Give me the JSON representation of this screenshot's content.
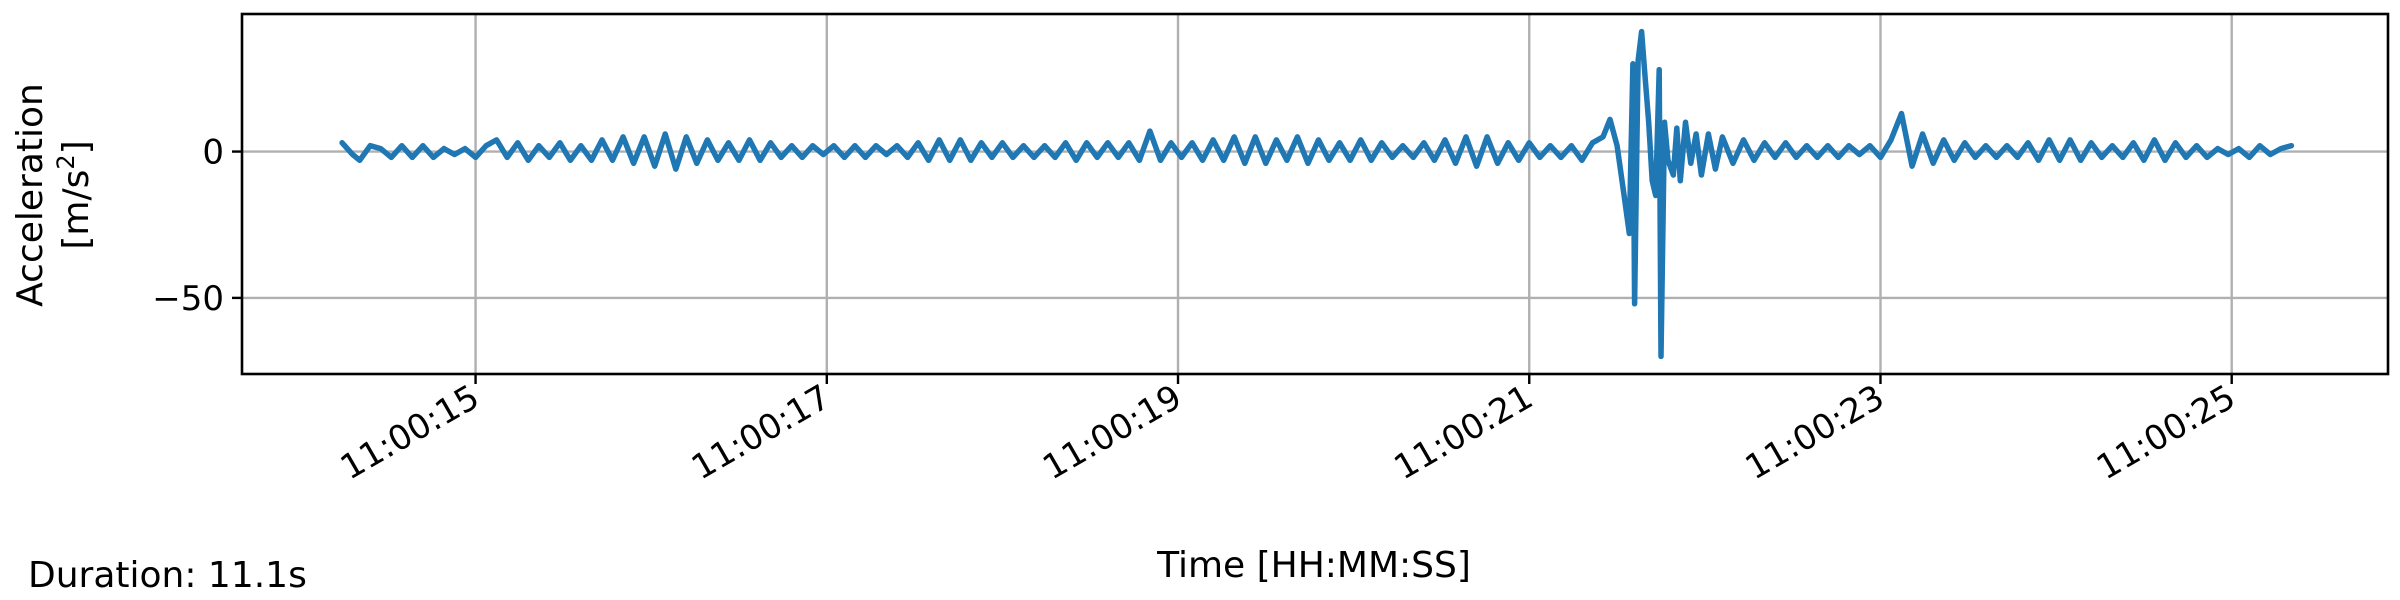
{
  "chart_data": {
    "type": "line",
    "xlabel": "Time [HH:MM:SS]",
    "ylabel_line1": "Acceleration",
    "ylabel_line2_base": "[m/s",
    "ylabel_line2_sup": "2",
    "ylabel_line2_end": "]",
    "xlim_seconds_of_minute": [
      13.67,
      25.89
    ],
    "ylim": [
      -76,
      47
    ],
    "grid": true,
    "legend": "none",
    "x_ticks": [
      {
        "t": 15,
        "label": "11:00:15"
      },
      {
        "t": 17,
        "label": "11:00:17"
      },
      {
        "t": 19,
        "label": "11:00:19"
      },
      {
        "t": 21,
        "label": "11:00:21"
      },
      {
        "t": 23,
        "label": "11:00:23"
      },
      {
        "t": 25,
        "label": "11:00:25"
      }
    ],
    "y_ticks": [
      {
        "v": 0,
        "label": "0"
      },
      {
        "v": -50,
        "label": "−50"
      }
    ],
    "series": [
      {
        "color": "#1f77b4",
        "start_second": 14.24,
        "end_second": 25.34,
        "points": [
          [
            14.24,
            3
          ],
          [
            14.3,
            -1
          ],
          [
            14.34,
            -3
          ],
          [
            14.4,
            2
          ],
          [
            14.46,
            1
          ],
          [
            14.52,
            -2
          ],
          [
            14.58,
            2
          ],
          [
            14.64,
            -2
          ],
          [
            14.7,
            2
          ],
          [
            14.76,
            -2
          ],
          [
            14.82,
            1
          ],
          [
            14.88,
            -1
          ],
          [
            14.94,
            1
          ],
          [
            15.0,
            -2
          ],
          [
            15.06,
            2
          ],
          [
            15.12,
            4
          ],
          [
            15.18,
            -2
          ],
          [
            15.24,
            3
          ],
          [
            15.3,
            -3
          ],
          [
            15.36,
            2
          ],
          [
            15.42,
            -2
          ],
          [
            15.48,
            3
          ],
          [
            15.54,
            -3
          ],
          [
            15.6,
            2
          ],
          [
            15.66,
            -3
          ],
          [
            15.72,
            4
          ],
          [
            15.78,
            -3
          ],
          [
            15.84,
            5
          ],
          [
            15.9,
            -4
          ],
          [
            15.96,
            5
          ],
          [
            16.02,
            -5
          ],
          [
            16.08,
            6
          ],
          [
            16.14,
            -6
          ],
          [
            16.2,
            5
          ],
          [
            16.26,
            -4
          ],
          [
            16.32,
            4
          ],
          [
            16.38,
            -3
          ],
          [
            16.44,
            3
          ],
          [
            16.5,
            -3
          ],
          [
            16.56,
            4
          ],
          [
            16.62,
            -3
          ],
          [
            16.68,
            3
          ],
          [
            16.74,
            -2
          ],
          [
            16.8,
            2
          ],
          [
            16.86,
            -2
          ],
          [
            16.92,
            2
          ],
          [
            16.98,
            -1
          ],
          [
            17.04,
            2
          ],
          [
            17.1,
            -2
          ],
          [
            17.16,
            2
          ],
          [
            17.22,
            -2
          ],
          [
            17.28,
            2
          ],
          [
            17.34,
            -1
          ],
          [
            17.4,
            2
          ],
          [
            17.46,
            -2
          ],
          [
            17.52,
            3
          ],
          [
            17.58,
            -3
          ],
          [
            17.64,
            4
          ],
          [
            17.7,
            -3
          ],
          [
            17.76,
            4
          ],
          [
            17.82,
            -3
          ],
          [
            17.88,
            3
          ],
          [
            17.94,
            -2
          ],
          [
            18.0,
            3
          ],
          [
            18.06,
            -2
          ],
          [
            18.12,
            2
          ],
          [
            18.18,
            -2
          ],
          [
            18.24,
            2
          ],
          [
            18.3,
            -2
          ],
          [
            18.36,
            3
          ],
          [
            18.42,
            -3
          ],
          [
            18.48,
            3
          ],
          [
            18.54,
            -2
          ],
          [
            18.6,
            3
          ],
          [
            18.66,
            -2
          ],
          [
            18.72,
            3
          ],
          [
            18.78,
            -3
          ],
          [
            18.84,
            7
          ],
          [
            18.9,
            -3
          ],
          [
            18.96,
            3
          ],
          [
            19.02,
            -2
          ],
          [
            19.08,
            3
          ],
          [
            19.14,
            -3
          ],
          [
            19.2,
            4
          ],
          [
            19.26,
            -3
          ],
          [
            19.32,
            5
          ],
          [
            19.38,
            -4
          ],
          [
            19.44,
            5
          ],
          [
            19.5,
            -4
          ],
          [
            19.56,
            4
          ],
          [
            19.62,
            -3
          ],
          [
            19.68,
            5
          ],
          [
            19.74,
            -4
          ],
          [
            19.8,
            4
          ],
          [
            19.86,
            -3
          ],
          [
            19.92,
            3
          ],
          [
            19.98,
            -3
          ],
          [
            20.04,
            4
          ],
          [
            20.1,
            -3
          ],
          [
            20.16,
            3
          ],
          [
            20.22,
            -2
          ],
          [
            20.28,
            2
          ],
          [
            20.34,
            -2
          ],
          [
            20.4,
            3
          ],
          [
            20.46,
            -3
          ],
          [
            20.52,
            4
          ],
          [
            20.58,
            -4
          ],
          [
            20.64,
            5
          ],
          [
            20.7,
            -5
          ],
          [
            20.76,
            5
          ],
          [
            20.82,
            -4
          ],
          [
            20.88,
            3
          ],
          [
            20.94,
            -3
          ],
          [
            21.0,
            3
          ],
          [
            21.06,
            -2
          ],
          [
            21.12,
            2
          ],
          [
            21.18,
            -2
          ],
          [
            21.24,
            2
          ],
          [
            21.3,
            -3
          ],
          [
            21.36,
            3
          ],
          [
            21.42,
            5
          ],
          [
            21.46,
            11
          ],
          [
            21.5,
            2
          ],
          [
            21.54,
            -15
          ],
          [
            21.57,
            -28
          ],
          [
            21.59,
            30
          ],
          [
            21.6,
            -52
          ],
          [
            21.62,
            31
          ],
          [
            21.64,
            41
          ],
          [
            21.66,
            25
          ],
          [
            21.68,
            10
          ],
          [
            21.7,
            -10
          ],
          [
            21.72,
            -15
          ],
          [
            21.74,
            28
          ],
          [
            21.75,
            -70
          ],
          [
            21.77,
            10
          ],
          [
            21.79,
            -3
          ],
          [
            21.82,
            -8
          ],
          [
            21.84,
            8
          ],
          [
            21.86,
            -10
          ],
          [
            21.89,
            10
          ],
          [
            21.92,
            -4
          ],
          [
            21.95,
            6
          ],
          [
            21.98,
            -8
          ],
          [
            22.02,
            6
          ],
          [
            22.06,
            -6
          ],
          [
            22.1,
            5
          ],
          [
            22.16,
            -4
          ],
          [
            22.22,
            4
          ],
          [
            22.28,
            -3
          ],
          [
            22.34,
            3
          ],
          [
            22.4,
            -2
          ],
          [
            22.46,
            3
          ],
          [
            22.52,
            -2
          ],
          [
            22.58,
            2
          ],
          [
            22.64,
            -2
          ],
          [
            22.7,
            2
          ],
          [
            22.76,
            -2
          ],
          [
            22.82,
            2
          ],
          [
            22.88,
            -1
          ],
          [
            22.94,
            2
          ],
          [
            23.0,
            -2
          ],
          [
            23.06,
            4
          ],
          [
            23.12,
            13
          ],
          [
            23.18,
            -5
          ],
          [
            23.24,
            6
          ],
          [
            23.3,
            -4
          ],
          [
            23.36,
            4
          ],
          [
            23.42,
            -3
          ],
          [
            23.48,
            3
          ],
          [
            23.54,
            -2
          ],
          [
            23.6,
            2
          ],
          [
            23.66,
            -2
          ],
          [
            23.72,
            2
          ],
          [
            23.78,
            -2
          ],
          [
            23.84,
            3
          ],
          [
            23.9,
            -3
          ],
          [
            23.96,
            4
          ],
          [
            24.02,
            -3
          ],
          [
            24.08,
            4
          ],
          [
            24.14,
            -3
          ],
          [
            24.2,
            3
          ],
          [
            24.26,
            -2
          ],
          [
            24.32,
            2
          ],
          [
            24.38,
            -2
          ],
          [
            24.44,
            3
          ],
          [
            24.5,
            -3
          ],
          [
            24.56,
            4
          ],
          [
            24.62,
            -3
          ],
          [
            24.68,
            3
          ],
          [
            24.74,
            -2
          ],
          [
            24.8,
            2
          ],
          [
            24.86,
            -2
          ],
          [
            24.92,
            1
          ],
          [
            24.98,
            -1
          ],
          [
            25.04,
            1
          ],
          [
            25.1,
            -2
          ],
          [
            25.16,
            2
          ],
          [
            25.22,
            -1
          ],
          [
            25.28,
            1
          ],
          [
            25.34,
            2
          ]
        ]
      }
    ]
  },
  "footer": {
    "duration": "Duration: 11.1s"
  }
}
